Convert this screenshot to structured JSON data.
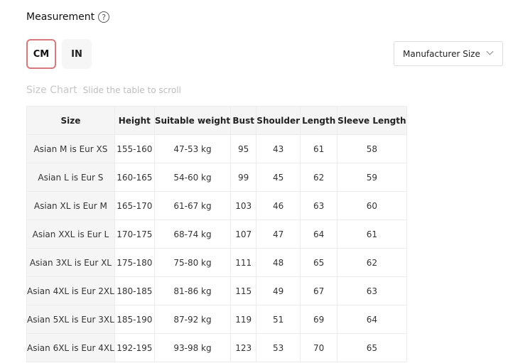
{
  "measurement": {
    "title": "Measurement",
    "help_icon": "question-circle-icon"
  },
  "units": {
    "cm": "CM",
    "in": "IN",
    "active": "CM",
    "accent": "#d9787a"
  },
  "size_select": {
    "value": "Manufacturer Size"
  },
  "size_chart": {
    "title": "Size Chart",
    "hint": "Slide the table to scroll"
  },
  "table": {
    "headers": [
      "Size",
      "Height",
      "Suitable weight",
      "Bust",
      "Shoulder",
      "Length",
      "Sleeve Length"
    ],
    "rows": [
      [
        "Asian M is Eur XS",
        "155-160",
        "47-53 kg",
        "95",
        "43",
        "61",
        "58"
      ],
      [
        "Asian L is Eur S",
        "160-165",
        "54-60 kg",
        "99",
        "45",
        "62",
        "59"
      ],
      [
        "Asian XL is Eur M",
        "165-170",
        "61-67 kg",
        "103",
        "46",
        "63",
        "60"
      ],
      [
        "Asian XXL is Eur L",
        "170-175",
        "68-74 kg",
        "107",
        "47",
        "64",
        "61"
      ],
      [
        "Asian 3XL is Eur XL",
        "175-180",
        "75-80 kg",
        "111",
        "48",
        "65",
        "62"
      ],
      [
        "Asian 4XL is Eur 2XL",
        "180-185",
        "81-86 kg",
        "115",
        "49",
        "67",
        "63"
      ],
      [
        "Asian 5XL is Eur 3XL",
        "185-190",
        "87-92 kg",
        "119",
        "51",
        "69",
        "64"
      ],
      [
        "Asian 6XL is Eur 4XL",
        "192-195",
        "93-98 kg",
        "123",
        "53",
        "70",
        "65"
      ]
    ]
  }
}
